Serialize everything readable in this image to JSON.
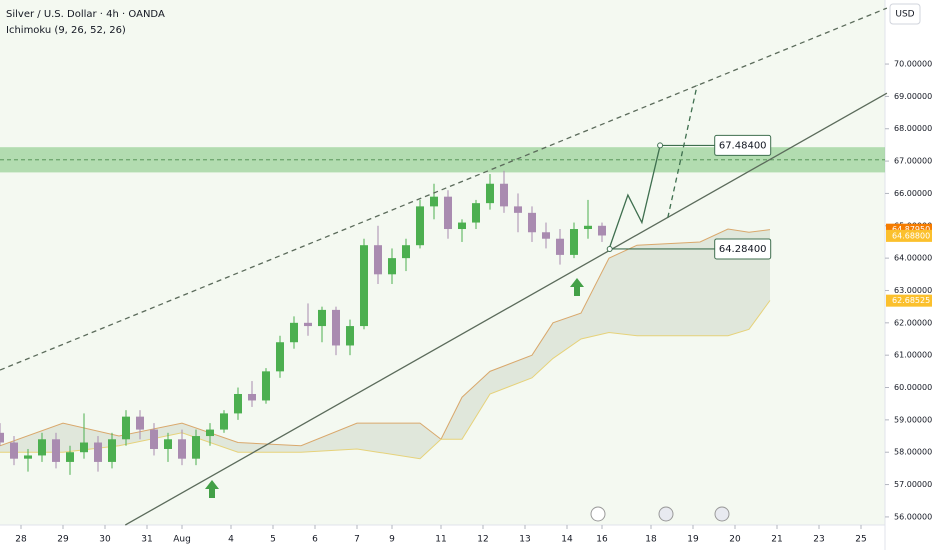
{
  "chart_data": {
    "type": "candlestick",
    "title": "Silver / U.S. Dollar · 4h · OANDA",
    "subtitle": "Ichimoku (9, 26, 52, 26)",
    "currency": "USD",
    "up_color": "#4caf50",
    "down_color": "#a98bb0",
    "xlim": [
      0,
      126.43
    ],
    "ylim": [
      55.75,
      71.98
    ],
    "xticks": [
      {
        "value": 3,
        "label": "28"
      },
      {
        "value": 9,
        "label": "29"
      },
      {
        "value": 15,
        "label": "30"
      },
      {
        "value": 21,
        "label": "31"
      },
      {
        "value": 26,
        "label": "Aug"
      },
      {
        "value": 33,
        "label": "4"
      },
      {
        "value": 39,
        "label": "5"
      },
      {
        "value": 45,
        "label": "6"
      },
      {
        "value": 51,
        "label": "7"
      },
      {
        "value": 56,
        "label": "9"
      },
      {
        "value": 63,
        "label": "11"
      },
      {
        "value": 69,
        "label": "12"
      },
      {
        "value": 75,
        "label": "13"
      },
      {
        "value": 81,
        "label": "14"
      },
      {
        "value": 86,
        "label": "16"
      },
      {
        "value": 93,
        "label": "18"
      },
      {
        "value": 99,
        "label": "19"
      },
      {
        "value": 105,
        "label": "20"
      },
      {
        "value": 111,
        "label": "21"
      },
      {
        "value": 117,
        "label": "23"
      },
      {
        "value": 123,
        "label": "25"
      }
    ],
    "yticks": [
      {
        "value": 70,
        "label": "70.00000"
      },
      {
        "value": 69,
        "label": "69.00000"
      },
      {
        "value": 68,
        "label": "68.00000"
      },
      {
        "value": 67,
        "label": "67.00000"
      },
      {
        "value": 66,
        "label": "66.00000"
      },
      {
        "value": 65,
        "label": "65.00000"
      },
      {
        "value": 64,
        "label": "64.00000"
      },
      {
        "value": 63,
        "label": "63.00000"
      },
      {
        "value": 62,
        "label": "62.00000"
      },
      {
        "value": 61,
        "label": "61.00000"
      },
      {
        "value": 60,
        "label": "60.00000"
      },
      {
        "value": 59,
        "label": "59.00000"
      },
      {
        "value": 58,
        "label": "58.00000"
      },
      {
        "value": 57,
        "label": "57.00000"
      },
      {
        "value": 56,
        "label": "56.00000"
      }
    ],
    "price_labels": [
      {
        "value": 64.8795,
        "label": "64.87950",
        "color": "#f57c00"
      },
      {
        "value": 64.688,
        "label": "64.68800",
        "color": "#fbc02d"
      },
      {
        "value": 62.68525,
        "label": "62.68525",
        "color": "#fbc02d"
      }
    ],
    "x": [
      0,
      2,
      4,
      6,
      8,
      10,
      12,
      14,
      16,
      18,
      20,
      22,
      24,
      26,
      28,
      30,
      32,
      34,
      36,
      38,
      40,
      42,
      44,
      46,
      48,
      50,
      52,
      54,
      56,
      58,
      60,
      62,
      64,
      66,
      68,
      70,
      72,
      74,
      76,
      78,
      80,
      82,
      84,
      86
    ],
    "open": [
      58.6,
      58.3,
      57.8,
      57.9,
      58.4,
      57.7,
      58.0,
      58.3,
      57.7,
      58.4,
      59.1,
      58.7,
      58.1,
      58.4,
      57.8,
      58.5,
      58.7,
      59.2,
      59.8,
      59.6,
      60.5,
      61.4,
      62.0,
      61.9,
      62.4,
      61.3,
      61.9,
      64.4,
      63.5,
      64.0,
      64.4,
      65.6,
      65.9,
      64.9,
      65.1,
      65.7,
      66.3,
      65.6,
      65.4,
      64.8,
      64.6,
      64.1,
      64.9,
      65.0
    ],
    "high": [
      58.9,
      58.5,
      58.1,
      58.6,
      58.6,
      58.2,
      59.2,
      58.5,
      58.6,
      59.3,
      59.3,
      58.9,
      58.6,
      58.7,
      58.7,
      58.9,
      59.3,
      60.0,
      60.2,
      60.6,
      61.6,
      62.2,
      62.6,
      62.5,
      62.5,
      62.1,
      64.6,
      65.0,
      64.3,
      64.6,
      65.8,
      66.3,
      66.1,
      65.2,
      65.8,
      66.6,
      66.7,
      66.0,
      65.6,
      65.1,
      64.9,
      65.1,
      65.8,
      65.1
    ],
    "low": [
      58.2,
      57.6,
      57.4,
      57.7,
      57.5,
      57.3,
      57.8,
      57.4,
      57.5,
      58.2,
      58.4,
      57.9,
      57.7,
      57.6,
      57.6,
      58.2,
      58.6,
      59.0,
      59.4,
      59.5,
      60.3,
      61.2,
      61.6,
      61.4,
      61.0,
      61.0,
      61.8,
      63.2,
      63.2,
      63.6,
      64.3,
      65.2,
      64.6,
      64.5,
      64.9,
      65.5,
      65.4,
      64.8,
      64.5,
      64.3,
      63.8,
      64.0,
      64.6,
      64.5
    ],
    "close": [
      58.3,
      57.8,
      57.9,
      58.4,
      57.7,
      58.0,
      58.3,
      57.7,
      58.4,
      59.1,
      58.7,
      58.1,
      58.4,
      57.8,
      58.5,
      58.7,
      59.2,
      59.8,
      59.6,
      60.5,
      61.4,
      62.0,
      61.9,
      62.4,
      61.3,
      61.9,
      64.4,
      63.5,
      64.0,
      64.4,
      65.6,
      65.9,
      64.9,
      65.1,
      65.7,
      66.3,
      65.6,
      65.4,
      64.8,
      64.6,
      64.1,
      64.9,
      65.0,
      64.7
    ],
    "cloud": {
      "x": [
        0,
        9,
        17,
        26,
        34,
        43,
        51,
        60,
        63,
        66,
        70,
        76,
        79,
        83,
        87,
        91,
        100,
        104,
        107,
        110
      ],
      "upper": [
        58.2,
        58.9,
        58.5,
        58.9,
        58.3,
        58.2,
        58.9,
        58.9,
        58.4,
        59.7,
        60.5,
        61.0,
        62.0,
        62.3,
        64.0,
        64.4,
        64.5,
        64.9,
        64.8,
        64.88
      ],
      "lower": [
        58.0,
        58.0,
        58.2,
        58.6,
        58.0,
        58.0,
        58.1,
        57.8,
        58.4,
        58.4,
        59.8,
        60.3,
        60.9,
        61.5,
        61.7,
        61.6,
        61.6,
        61.6,
        61.8,
        62.69
      ]
    },
    "zone": [
      66.65,
      67.43
    ],
    "lines": [
      {
        "style": "solid",
        "color": "#5b6b5b",
        "x": [
          17.9,
          126.7
        ],
        "values": [
          55.75,
          69.1
        ]
      },
      {
        "style": "dashed",
        "color": "#5b6b5b",
        "x": [
          0,
          126.7
        ],
        "values": [
          60.54,
          71.73
        ]
      },
      {
        "style": "solid",
        "color": "#3f6f4f",
        "x": [
          87.1,
          89.7,
          91.7,
          94.3
        ],
        "values": [
          64.34,
          65.95,
          65.1,
          67.48
        ]
      },
      {
        "style": "dashed",
        "color": "#3f6f4f",
        "x": [
          95.4,
          99.6
        ],
        "values": [
          65.25,
          69.35
        ]
      }
    ],
    "levels": [
      {
        "value": 67.484,
        "label": "67.48400",
        "x": 94.3,
        "x2": 102.1
      },
      {
        "value": 64.284,
        "label": "64.28400",
        "x": 87.1,
        "x2": 102.1
      }
    ]
  }
}
